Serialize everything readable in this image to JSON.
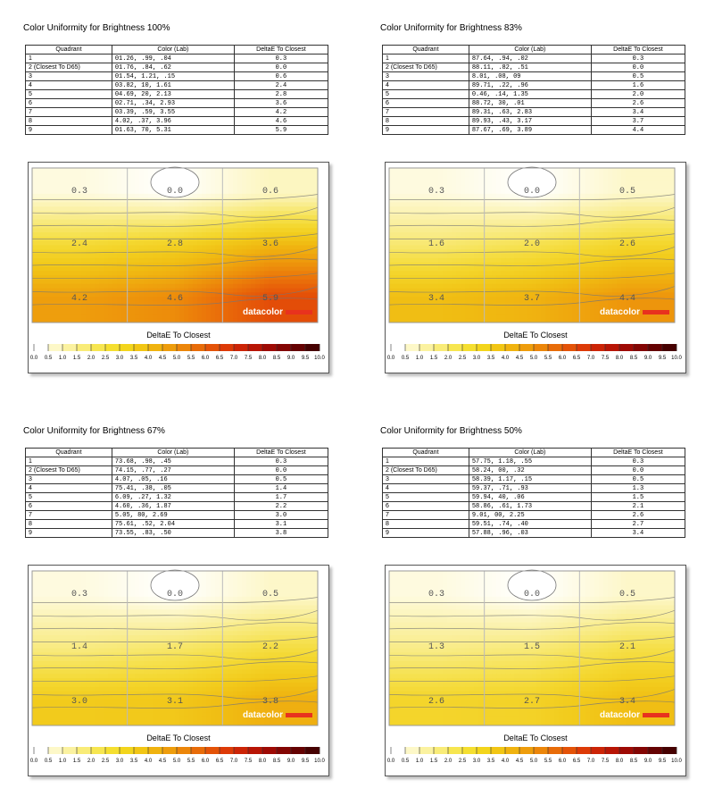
{
  "panels": [
    {
      "title": "Color Uniformity for Brightness 100%",
      "headers": [
        "Quadrant",
        "Color (Lab)",
        "DeltaE To Closest"
      ],
      "rows": [
        [
          "1",
          "01.26,    .99,    .04",
          "0.3"
        ],
        [
          "2 (Closest To D65)",
          "01.76,    .84,    .62",
          "0.0"
        ],
        [
          "3",
          "01.54,   1.21,    .15",
          "0.6"
        ],
        [
          "4",
          "03.82,    10,   1.61",
          "2.4"
        ],
        [
          "5",
          "04.69,    20,   2.13",
          "2.8"
        ],
        [
          "6",
          "02.71,    .34,   2.93",
          "3.6"
        ],
        [
          "7",
          "03.39,    .59,   3.55",
          "4.2"
        ],
        [
          "8",
          "4.02,    .37,   3.96",
          "4.6"
        ],
        [
          "9",
          "01.63,    70,   5.31",
          "5.9"
        ]
      ],
      "grid_values": [
        "0.3",
        "0.0",
        "0.6",
        "2.4",
        "2.8",
        "3.6",
        "4.2",
        "4.6",
        "5.9"
      ],
      "chart_label": "DeltaE To Closest",
      "brand": "datacolor"
    },
    {
      "title": "Color Uniformity for Brightness 83%",
      "headers": [
        "Quadrant",
        "Color (Lab)",
        "DeltaE To Closest"
      ],
      "rows": [
        [
          "1",
          "87.64,    .94,    .02",
          "0.3"
        ],
        [
          "2 (Closest To D65)",
          "88.11,    .82,    .51",
          "0.0"
        ],
        [
          "3",
          "8.01,    .08,    09",
          "0.5"
        ],
        [
          "4",
          "89.71,    .22,    .96",
          "1.6"
        ],
        [
          "5",
          "0.46,    .14,   1.35",
          "2.0"
        ],
        [
          "6",
          "88.72,    30,    .01",
          "2.6"
        ],
        [
          "7",
          "89.31,    .63,   2.83",
          "3.4"
        ],
        [
          "8",
          "89.93,    .43,   3.17",
          "3.7"
        ],
        [
          "9",
          "87.67,    .69,   3.89",
          "4.4"
        ]
      ],
      "grid_values": [
        "0.3",
        "0.0",
        "0.5",
        "1.6",
        "2.0",
        "2.6",
        "3.4",
        "3.7",
        "4.4"
      ],
      "chart_label": "DeltaE To Closest",
      "brand": "datacolor"
    },
    {
      "title": "Color Uniformity for Brightness 67%",
      "headers": [
        "Quadrant",
        "Color (Lab)",
        "DeltaE To Closest"
      ],
      "rows": [
        [
          "1",
          "73.68,    .98,    .45",
          "0.3"
        ],
        [
          "2 (Closest To D65)",
          "74.15,    .77,    .27",
          "0.0"
        ],
        [
          "3",
          "4.07,    .05,    .16",
          "0.5"
        ],
        [
          "4",
          "75.41,    .38,    .05",
          "1.4"
        ],
        [
          "5",
          "6.09,    .27,   1.32",
          "1.7"
        ],
        [
          "6",
          "4.60,    .36,   1.87",
          "2.2"
        ],
        [
          "7",
          "5.05,    80,   2.69",
          "3.0"
        ],
        [
          "8",
          "75.61,    .52,   2.04",
          "3.1"
        ],
        [
          "9",
          "73.55,    .83,    .50",
          "3.8"
        ]
      ],
      "grid_values": [
        "0.3",
        "0.0",
        "0.5",
        "1.4",
        "1.7",
        "2.2",
        "3.0",
        "3.1",
        "3.8"
      ],
      "chart_label": "DeltaE To Closest",
      "brand": "datacolor"
    },
    {
      "title": "Color Uniformity for Brightness 50%",
      "headers": [
        "Quadrant",
        "Color (Lab)",
        "DeltaE To Closest"
      ],
      "rows": [
        [
          "1",
          "57.75,   1.18,    .55",
          "0.3"
        ],
        [
          "2 (Closest To D65)",
          "58.24,    00,    .32",
          "0.0"
        ],
        [
          "3",
          "58.39,   1.17,    .15",
          "0.5"
        ],
        [
          "4",
          "59.37,    .71,    .93",
          "1.3"
        ],
        [
          "5",
          "59.94,    40,    .06",
          "1.5"
        ],
        [
          "6",
          "58.86,    .61,   1.73",
          "2.1"
        ],
        [
          "7",
          "9.01,    00,   2.25",
          "2.6"
        ],
        [
          "8",
          "59.51,    .74,    .40",
          "2.7"
        ],
        [
          "9",
          "57.88,    .96,    .03",
          "3.4"
        ]
      ],
      "grid_values": [
        "0.3",
        "0.0",
        "0.5",
        "1.3",
        "1.5",
        "2.1",
        "2.6",
        "2.7",
        "3.4"
      ],
      "chart_label": "DeltaE To Closest",
      "brand": "datacolor"
    }
  ],
  "scale_ticks": [
    "0.0",
    "0.5",
    "1.0",
    "1.5",
    "2.0",
    "2.5",
    "3.0",
    "3.5",
    "4.0",
    "4.5",
    "5.0",
    "5.5",
    "6.0",
    "6.5",
    "7.0",
    "7.5",
    "8.0",
    "8.5",
    "9.0",
    "9.5",
    "10.0"
  ],
  "scale_colors": [
    "#ffffff",
    "#fdf8c8",
    "#fbf2a0",
    "#f9ec78",
    "#f7e650",
    "#f5df30",
    "#f3d51c",
    "#f2c614",
    "#f0b30f",
    "#ee9d0c",
    "#ec860a",
    "#e86c09",
    "#e45308",
    "#dd3a07",
    "#cc2406",
    "#b81505",
    "#9e0a04",
    "#830503",
    "#650202",
    "#460101"
  ],
  "chart_data": [
    {
      "type": "heatmap",
      "title": "Color Uniformity for Brightness 100%",
      "label": "DeltaE To Closest",
      "grid": [
        [
          0.3,
          0.0,
          0.6
        ],
        [
          2.4,
          2.8,
          3.6
        ],
        [
          4.2,
          4.6,
          5.9
        ]
      ],
      "lab": [
        [
          1.26,
          0.99,
          0.04
        ],
        [
          1.76,
          0.84,
          0.62
        ],
        [
          1.54,
          1.21,
          0.15
        ],
        [
          3.82,
          10,
          1.61
        ],
        [
          4.69,
          20,
          2.13
        ],
        [
          2.71,
          0.34,
          2.93
        ],
        [
          3.39,
          0.59,
          3.55
        ],
        [
          4.02,
          0.37,
          3.96
        ],
        [
          1.63,
          70,
          5.31
        ]
      ],
      "scale_range": [
        0,
        10
      ]
    },
    {
      "type": "heatmap",
      "title": "Color Uniformity for Brightness 83%",
      "label": "DeltaE To Closest",
      "grid": [
        [
          0.3,
          0.0,
          0.5
        ],
        [
          1.6,
          2.0,
          2.6
        ],
        [
          3.4,
          3.7,
          4.4
        ]
      ],
      "lab": [
        [
          87.64,
          0.94,
          0.02
        ],
        [
          88.11,
          0.82,
          0.51
        ],
        [
          8.01,
          0.08,
          9
        ],
        [
          89.71,
          0.22,
          0.96
        ],
        [
          0.46,
          0.14,
          1.35
        ],
        [
          88.72,
          30,
          0.01
        ],
        [
          89.31,
          0.63,
          2.83
        ],
        [
          89.93,
          0.43,
          3.17
        ],
        [
          87.67,
          0.69,
          3.89
        ]
      ],
      "scale_range": [
        0,
        10
      ]
    },
    {
      "type": "heatmap",
      "title": "Color Uniformity for Brightness 67%",
      "label": "DeltaE To Closest",
      "grid": [
        [
          0.3,
          0.0,
          0.5
        ],
        [
          1.4,
          1.7,
          2.2
        ],
        [
          3.0,
          3.1,
          3.8
        ]
      ],
      "lab": [
        [
          73.68,
          0.98,
          0.45
        ],
        [
          74.15,
          0.77,
          0.27
        ],
        [
          4.07,
          0.05,
          0.16
        ],
        [
          75.41,
          0.38,
          0.05
        ],
        [
          6.09,
          0.27,
          1.32
        ],
        [
          4.6,
          0.36,
          1.87
        ],
        [
          5.05,
          80,
          2.69
        ],
        [
          75.61,
          0.52,
          2.04
        ],
        [
          73.55,
          0.83,
          0.5
        ]
      ],
      "scale_range": [
        0,
        10
      ]
    },
    {
      "type": "heatmap",
      "title": "Color Uniformity for Brightness 50%",
      "label": "DeltaE To Closest",
      "grid": [
        [
          0.3,
          0.0,
          0.5
        ],
        [
          1.3,
          1.5,
          2.1
        ],
        [
          2.6,
          2.7,
          3.4
        ]
      ],
      "lab": [
        [
          57.75,
          1.18,
          0.55
        ],
        [
          58.24,
          0,
          0.32
        ],
        [
          58.39,
          1.17,
          0.15
        ],
        [
          59.37,
          0.71,
          0.93
        ],
        [
          59.94,
          40,
          0.06
        ],
        [
          58.86,
          0.61,
          1.73
        ],
        [
          9.01,
          0,
          2.25
        ],
        [
          59.51,
          0.74,
          0.4
        ],
        [
          57.88,
          0.96,
          0.03
        ]
      ],
      "scale_range": [
        0,
        10
      ]
    }
  ]
}
